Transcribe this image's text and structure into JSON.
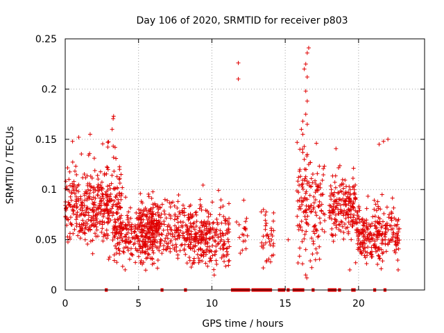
{
  "chart_data": {
    "type": "scatter",
    "title": "Day 106 of 2020, SRMTID for receiver p803",
    "xlabel": "GPS time / hours",
    "ylabel": "SRMTID / TECUs",
    "xlim": [
      0,
      24.5
    ],
    "ylim": [
      0,
      0.25
    ],
    "xticks": [
      0,
      5,
      10,
      15,
      20
    ],
    "xtick_labels": [
      "0",
      "5",
      "10",
      "15",
      "20"
    ],
    "yticks": [
      0,
      0.05,
      0.1,
      0.15,
      0.2,
      0.25
    ],
    "ytick_labels": [
      "0",
      "0.05",
      "0.1",
      "0.15",
      "0.2",
      "0.25"
    ],
    "grid": true,
    "marker": "+",
    "color": "#e00000",
    "series": [
      {
        "name": "SRMTID",
        "clusters": [
          {
            "x0": 0.0,
            "x1": 3.0,
            "y_center": 0.08,
            "y_spread": 0.022,
            "count": 300
          },
          {
            "x0": 2.8,
            "x1": 3.9,
            "y_center": 0.085,
            "y_spread": 0.028,
            "count": 90
          },
          {
            "x0": 3.3,
            "x1": 6.5,
            "y_center": 0.055,
            "y_spread": 0.018,
            "count": 260
          },
          {
            "x0": 5.0,
            "x1": 8.5,
            "y_center": 0.06,
            "y_spread": 0.02,
            "count": 250
          },
          {
            "x0": 8.3,
            "x1": 11.2,
            "y_center": 0.05,
            "y_spread": 0.018,
            "count": 260
          },
          {
            "x0": 11.6,
            "x1": 12.5,
            "y_center": 0.055,
            "y_spread": 0.014,
            "count": 18
          },
          {
            "x0": 13.3,
            "x1": 14.3,
            "y_center": 0.055,
            "y_spread": 0.018,
            "count": 35
          },
          {
            "x0": 15.8,
            "x1": 17.7,
            "y_center": 0.085,
            "y_spread": 0.035,
            "count": 150
          },
          {
            "x0": 18.0,
            "x1": 19.8,
            "y_center": 0.08,
            "y_spread": 0.016,
            "count": 180
          },
          {
            "x0": 19.8,
            "x1": 21.5,
            "y_center": 0.055,
            "y_spread": 0.018,
            "count": 170
          },
          {
            "x0": 21.5,
            "x1": 22.8,
            "y_center": 0.055,
            "y_spread": 0.014,
            "count": 90
          }
        ],
        "points": [
          [
            11.8,
            0.226
          ],
          [
            11.8,
            0.21
          ],
          [
            16.6,
            0.241
          ],
          [
            16.5,
            0.236
          ],
          [
            16.4,
            0.225
          ],
          [
            16.3,
            0.22
          ],
          [
            16.5,
            0.212
          ],
          [
            16.4,
            0.198
          ],
          [
            16.5,
            0.188
          ],
          [
            16.4,
            0.175
          ],
          [
            16.2,
            0.168
          ],
          [
            16.5,
            0.165
          ],
          [
            16.1,
            0.16
          ],
          [
            16.2,
            0.155
          ],
          [
            3.3,
            0.173
          ],
          [
            3.2,
            0.16
          ],
          [
            1.7,
            0.155
          ],
          [
            22.0,
            0.15
          ],
          [
            21.7,
            0.148
          ],
          [
            21.4,
            0.145
          ],
          [
            0.5,
            0.148
          ],
          [
            2.9,
            0.147
          ],
          [
            3.4,
            0.142
          ],
          [
            16.0,
            0.14
          ],
          [
            16.2,
            0.137
          ],
          [
            16.5,
            0.135
          ],
          [
            16.3,
            0.13
          ],
          [
            16.6,
            0.125
          ],
          [
            16.0,
            0.12
          ],
          [
            15.2,
            0.05
          ],
          [
            12.3,
            0.06
          ],
          [
            19.4,
            0.02
          ],
          [
            22.7,
            0.02
          ],
          [
            13.5,
            0.022
          ],
          [
            14.0,
            0.028
          ]
        ],
        "zero_segments": [
          [
            2.7,
            2.9
          ],
          [
            6.5,
            6.7
          ],
          [
            8.1,
            8.3
          ],
          [
            11.3,
            12.6
          ],
          [
            12.7,
            14.1
          ],
          [
            14.5,
            15.0
          ],
          [
            15.1,
            15.3
          ],
          [
            15.5,
            16.3
          ],
          [
            16.8,
            17.0
          ],
          [
            17.9,
            18.5
          ],
          [
            18.6,
            18.8
          ],
          [
            19.5,
            19.8
          ],
          [
            21.0,
            21.2
          ],
          [
            21.7,
            21.9
          ]
        ]
      }
    ]
  }
}
